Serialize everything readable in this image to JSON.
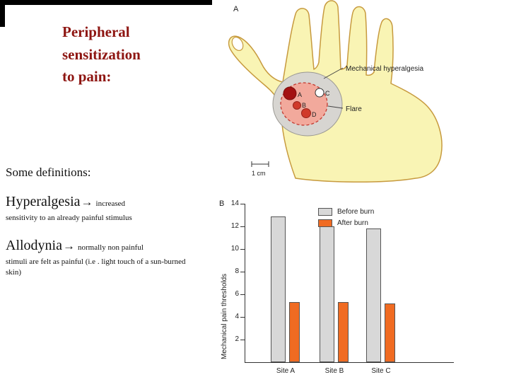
{
  "slide": {
    "title_lines": [
      "Peripheral",
      "sensitization",
      "to pain:"
    ],
    "title_color": "#8e1612",
    "definitions_heading": "Some definitions:",
    "definitions": [
      {
        "term": "Hyperalgesia",
        "arrow": "→",
        "inline_note": "increased",
        "detail": "sensitivity to an already painful stimulus"
      },
      {
        "term": "Allodynia",
        "arrow": "→",
        "inline_note": "normally non painful",
        "detail": "stimuli are felt as painful (i.e . light touch of a sun-burned skin)"
      }
    ]
  },
  "figure_a": {
    "panel_label": "A",
    "hyperalgesia_label": "Mechanical hyperalgesia",
    "flare_label": "Flare",
    "scale_label": "1 cm",
    "zone_letters": {
      "a": "A",
      "b": "B",
      "c": "C",
      "d": "D"
    },
    "colors": {
      "hand_fill": "#f9f4b4",
      "hand_outline": "#c79a3e",
      "hyperalgesia_fill": "#d7d5d1",
      "flare_fill": "#f2a99c",
      "flare_outline": "#c3392f",
      "injury_dark": "#a31111",
      "injury_red": "#d03a2a"
    }
  },
  "chart_data": {
    "type": "bar",
    "panel_label": "B",
    "categories": [
      "Site A",
      "Site B",
      "Site C"
    ],
    "series": [
      {
        "name": "Before burn",
        "color": "#d8d8d8",
        "values": [
          12.9,
          12.0,
          11.8
        ]
      },
      {
        "name": "After burn",
        "color": "#f06b22",
        "values": [
          5.3,
          5.3,
          5.2
        ]
      }
    ],
    "ylabel": "Mechanical pain thresholds",
    "yticks": [
      2,
      4,
      6,
      8,
      10,
      12,
      14
    ],
    "ylim": [
      0,
      14
    ],
    "grid": false,
    "legend_position": "top-right"
  }
}
